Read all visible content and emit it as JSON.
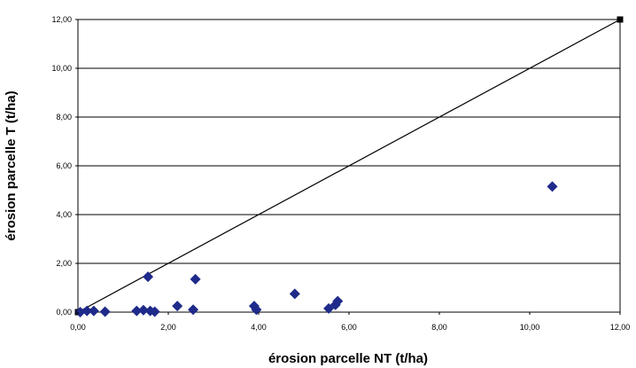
{
  "chart_data": {
    "type": "scatter",
    "xlabel": "érosion parcelle NT (t/ha)",
    "ylabel": "érosion parcelle T (t/ha)",
    "xlim": [
      0,
      12
    ],
    "ylim": [
      0,
      12
    ],
    "x_ticks": [
      "0,00",
      "2,00",
      "4,00",
      "6,00",
      "8,00",
      "10,00",
      "12,00"
    ],
    "y_ticks": [
      "0,00",
      "2,00",
      "4,00",
      "6,00",
      "8,00",
      "10,00",
      "12,00"
    ],
    "grid": "horizontal",
    "marker_color": "#1f2a8a",
    "reference_line": {
      "from": [
        0,
        0
      ],
      "to": [
        12,
        12
      ],
      "color": "#000000"
    },
    "series": [
      {
        "points": [
          [
            0.05,
            0.0
          ],
          [
            0.2,
            0.05
          ],
          [
            0.35,
            0.05
          ],
          [
            0.6,
            0.02
          ],
          [
            1.3,
            0.05
          ],
          [
            1.45,
            0.08
          ],
          [
            1.55,
            1.45
          ],
          [
            1.6,
            0.05
          ],
          [
            1.7,
            0.02
          ],
          [
            2.2,
            0.25
          ],
          [
            2.55,
            0.1
          ],
          [
            2.6,
            1.35
          ],
          [
            3.9,
            0.25
          ],
          [
            3.95,
            0.1
          ],
          [
            4.8,
            0.75
          ],
          [
            5.55,
            0.15
          ],
          [
            5.7,
            0.3
          ],
          [
            5.75,
            0.45
          ],
          [
            10.5,
            5.15
          ]
        ]
      }
    ]
  }
}
